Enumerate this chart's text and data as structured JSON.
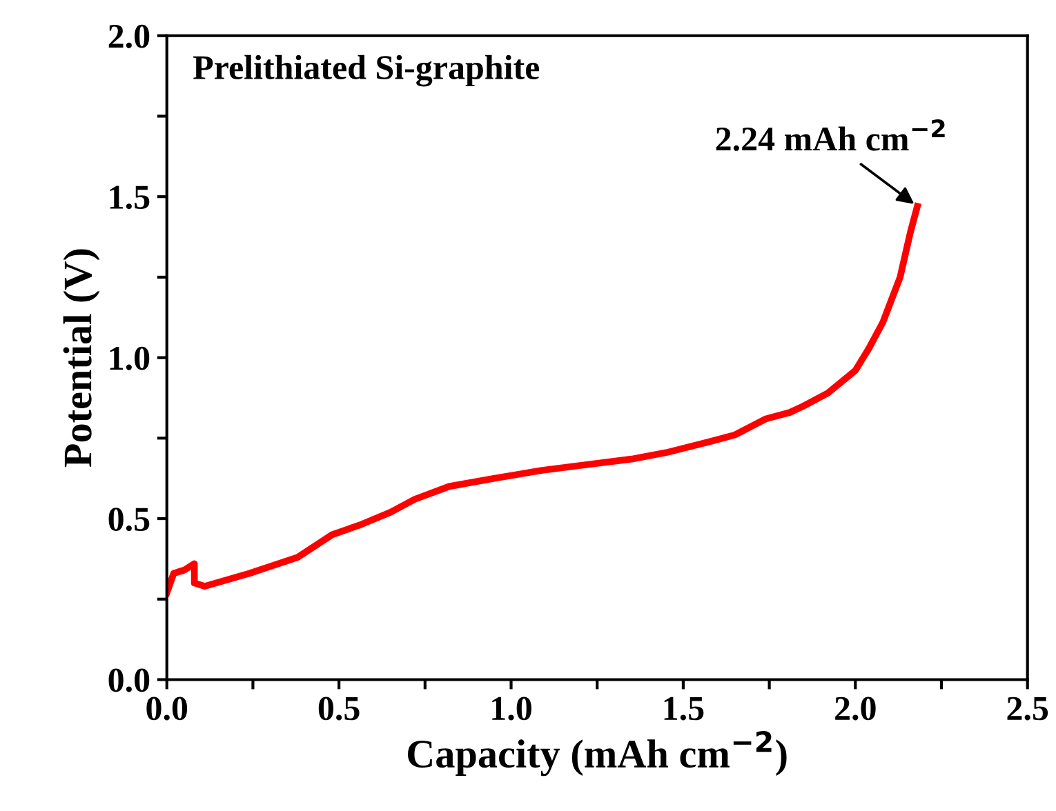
{
  "chart_data": {
    "type": "line",
    "xlabel": "Capacity (mAh cm$^{−2}$)",
    "ylabel": "Potential (V)",
    "annotations": [
      "Prelithiated Si-graphite",
      {
        "text": "2.24 mAh cm$^{−2}$",
        "x": 2.18,
        "y": 1.47
      }
    ],
    "series": [
      {
        "color": "#ff0000",
        "x": [
          0.0,
          0.02,
          0.05,
          0.08,
          0.08,
          0.11,
          0.24,
          0.38,
          0.48,
          0.56,
          0.65,
          0.72,
          0.82,
          0.95,
          1.09,
          1.2,
          1.35,
          1.45,
          1.58,
          1.65,
          1.74,
          1.81,
          1.85,
          1.92,
          2.0,
          2.04,
          2.08,
          2.13,
          2.16,
          2.18
        ],
        "values": [
          0.27,
          0.33,
          0.34,
          0.36,
          0.3,
          0.29,
          0.33,
          0.38,
          0.45,
          0.48,
          0.52,
          0.56,
          0.6,
          0.625,
          0.65,
          0.665,
          0.685,
          0.705,
          0.74,
          0.76,
          0.81,
          0.83,
          0.85,
          0.89,
          0.96,
          1.03,
          1.11,
          1.25,
          1.39,
          1.47
        ]
      }
    ],
    "xlim": [
      0,
      2.5
    ],
    "ylim": [
      0,
      2.0
    ],
    "xticks": [
      {
        "value": 0,
        "label": "0.0"
      },
      {
        "value": 0.25,
        "label": null
      },
      {
        "value": 0.5,
        "label": "0.5"
      },
      {
        "value": 0.75,
        "label": null
      },
      {
        "value": 1.0,
        "label": "1.0"
      },
      {
        "value": 1.25,
        "label": null
      },
      {
        "value": 1.5,
        "label": "1.5"
      },
      {
        "value": 1.75,
        "label": null
      },
      {
        "value": 2.0,
        "label": "2.0"
      },
      {
        "value": 2.25,
        "label": null
      },
      {
        "value": 2.5,
        "label": "2.5"
      }
    ],
    "yticks": [
      {
        "value": 0,
        "label": "0.0"
      },
      {
        "value": 0.25,
        "label": null
      },
      {
        "value": 0.5,
        "label": "0.5"
      },
      {
        "value": 0.75,
        "label": null
      },
      {
        "value": 1.0,
        "label": "1.0"
      },
      {
        "value": 1.25,
        "label": null
      },
      {
        "value": 1.5,
        "label": "1.5"
      },
      {
        "value": 1.75,
        "label": null
      },
      {
        "value": 2.0,
        "label": "2.0"
      }
    ],
    "grid": false,
    "legend": false,
    "line_style": "solid"
  }
}
